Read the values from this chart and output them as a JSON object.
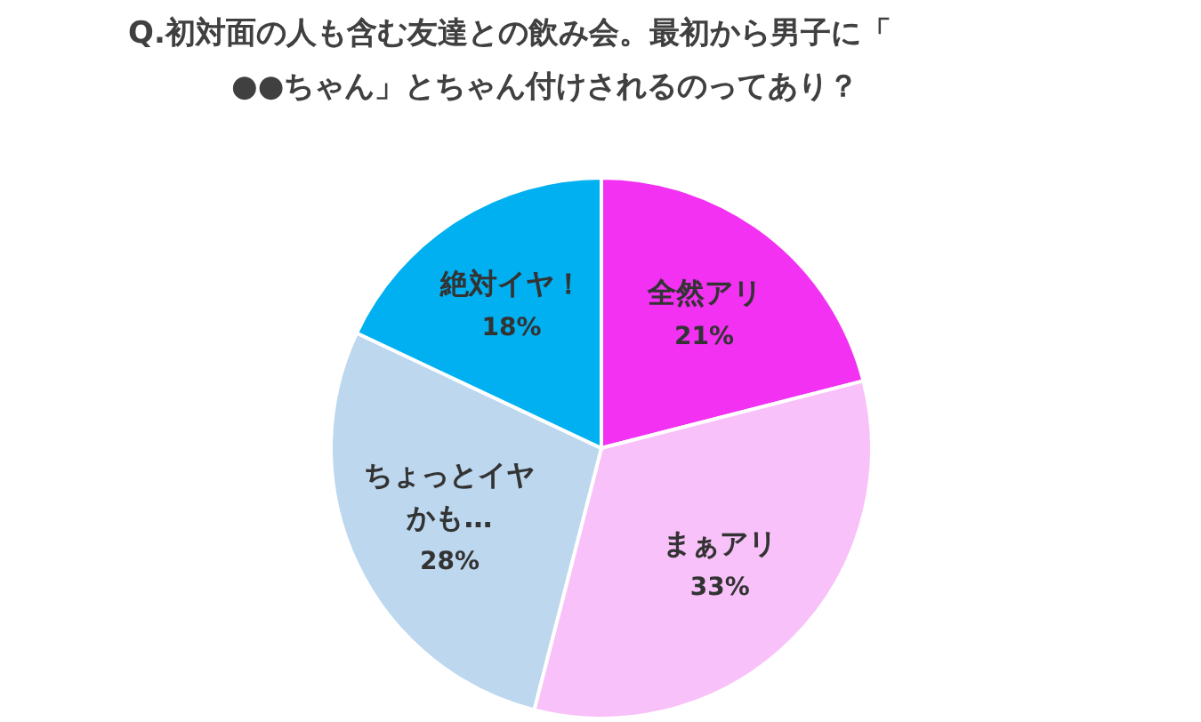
{
  "chart_data": {
    "type": "pie",
    "title": "Q.初対面の人も含む友達との飲み会。最初から男子に「●●ちゃん」とちゃん付けされるのってあり？",
    "categories": [
      "全然アリ",
      "まぁアリ",
      "ちょっとイヤかも…",
      "絶対イヤ！"
    ],
    "values": [
      21,
      33,
      28,
      18
    ],
    "colors": [
      "#f231f2",
      "#f9c1f9",
      "#bdd7ee",
      "#00b0f0"
    ],
    "value_labels": [
      "21%",
      "33%",
      "28%",
      "18%"
    ]
  }
}
